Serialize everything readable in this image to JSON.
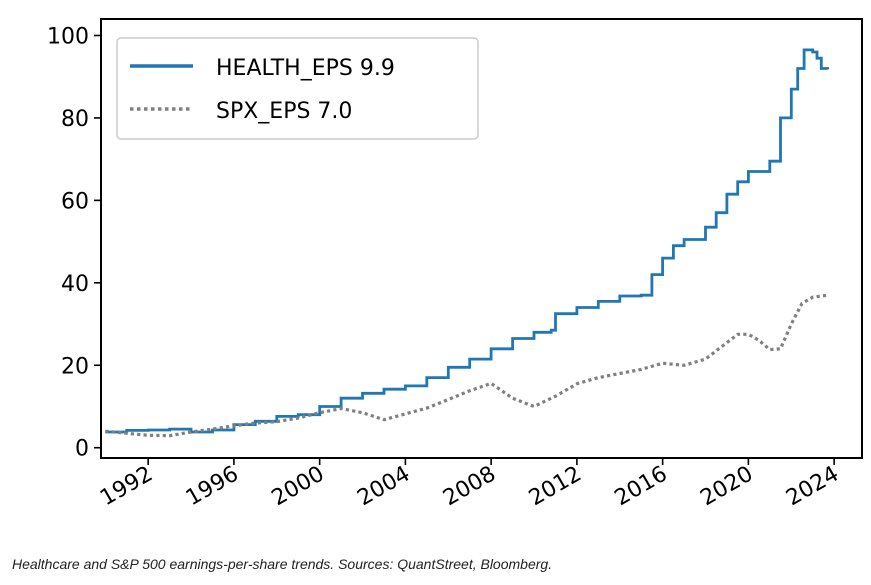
{
  "chart_data": {
    "type": "line",
    "title": "",
    "xlabel": "",
    "ylabel": "",
    "xlim": [
      1989.8,
      2025.3
    ],
    "ylim": [
      -2.5,
      104
    ],
    "x_ticks": [
      1992,
      1996,
      2000,
      2004,
      2008,
      2012,
      2016,
      2020,
      2024
    ],
    "x_tick_labels": [
      "1992",
      "1996",
      "2000",
      "2004",
      "2008",
      "2012",
      "2016",
      "2020",
      "2024"
    ],
    "y_ticks": [
      0,
      20,
      40,
      60,
      80,
      100
    ],
    "y_tick_labels": [
      "0",
      "20",
      "40",
      "60",
      "80",
      "100"
    ],
    "grid": false,
    "legend_position": "top-left",
    "series": [
      {
        "name": "HEALTH_EPS 9.9",
        "color": "#1f77b4",
        "style": "solid",
        "points": [
          [
            1990.0,
            3.8
          ],
          [
            1991.0,
            4.2
          ],
          [
            1992.0,
            4.3
          ],
          [
            1993.0,
            4.5
          ],
          [
            1994.0,
            3.8
          ],
          [
            1995.0,
            4.3
          ],
          [
            1996.0,
            5.6
          ],
          [
            1997.0,
            6.4
          ],
          [
            1998.0,
            7.6
          ],
          [
            1999.0,
            8.0
          ],
          [
            2000.0,
            10.0
          ],
          [
            2001.0,
            12.0
          ],
          [
            2002.0,
            13.2
          ],
          [
            2003.0,
            14.2
          ],
          [
            2004.0,
            15.0
          ],
          [
            2005.0,
            17.0
          ],
          [
            2006.0,
            19.5
          ],
          [
            2007.0,
            21.5
          ],
          [
            2008.0,
            24.0
          ],
          [
            2009.0,
            26.5
          ],
          [
            2010.0,
            28.0
          ],
          [
            2010.8,
            28.5
          ],
          [
            2011.0,
            32.5
          ],
          [
            2012.0,
            34.0
          ],
          [
            2013.0,
            35.5
          ],
          [
            2014.0,
            36.8
          ],
          [
            2015.0,
            37.0
          ],
          [
            2015.5,
            42.0
          ],
          [
            2016.0,
            46.0
          ],
          [
            2016.5,
            49.0
          ],
          [
            2017.0,
            50.5
          ],
          [
            2018.0,
            53.5
          ],
          [
            2018.5,
            57.0
          ],
          [
            2019.0,
            61.5
          ],
          [
            2019.5,
            64.5
          ],
          [
            2020.0,
            67.0
          ],
          [
            2021.0,
            69.5
          ],
          [
            2021.5,
            80.0
          ],
          [
            2022.0,
            87.0
          ],
          [
            2022.3,
            92.0
          ],
          [
            2022.6,
            96.5
          ],
          [
            2023.0,
            96.0
          ],
          [
            2023.2,
            94.5
          ],
          [
            2023.4,
            92.0
          ],
          [
            2023.7,
            91.8
          ]
        ]
      },
      {
        "name": "SPX_EPS 7.0",
        "color": "#808080",
        "style": "dotted",
        "points": [
          [
            1990.0,
            4.0
          ],
          [
            1991.0,
            3.5
          ],
          [
            1992.0,
            3.0
          ],
          [
            1993.0,
            2.9
          ],
          [
            1994.0,
            3.8
          ],
          [
            1995.0,
            4.5
          ],
          [
            1996.0,
            5.3
          ],
          [
            1997.0,
            6.0
          ],
          [
            1998.0,
            6.3
          ],
          [
            1999.0,
            7.2
          ],
          [
            2000.0,
            8.5
          ],
          [
            2001.0,
            9.5
          ],
          [
            2002.0,
            8.5
          ],
          [
            2003.0,
            6.8
          ],
          [
            2004.0,
            8.2
          ],
          [
            2005.0,
            9.6
          ],
          [
            2006.0,
            11.7
          ],
          [
            2007.0,
            13.8
          ],
          [
            2008.0,
            15.6
          ],
          [
            2009.0,
            12.0
          ],
          [
            2010.0,
            10.0
          ],
          [
            2011.0,
            12.5
          ],
          [
            2012.0,
            15.5
          ],
          [
            2013.0,
            17.0
          ],
          [
            2014.0,
            18.0
          ],
          [
            2015.0,
            19.0
          ],
          [
            2016.0,
            20.5
          ],
          [
            2017.0,
            20.0
          ],
          [
            2018.0,
            21.5
          ],
          [
            2019.0,
            25.5
          ],
          [
            2019.5,
            27.5
          ],
          [
            2020.0,
            27.5
          ],
          [
            2020.5,
            26.0
          ],
          [
            2021.0,
            23.8
          ],
          [
            2021.5,
            24.0
          ],
          [
            2022.0,
            30.0
          ],
          [
            2022.5,
            35.0
          ],
          [
            2023.0,
            36.5
          ],
          [
            2023.7,
            37.0
          ]
        ]
      }
    ],
    "caption": "Healthcare and S&P 500 earnings-per-share trends. Sources: QuantStreet, Bloomberg."
  }
}
